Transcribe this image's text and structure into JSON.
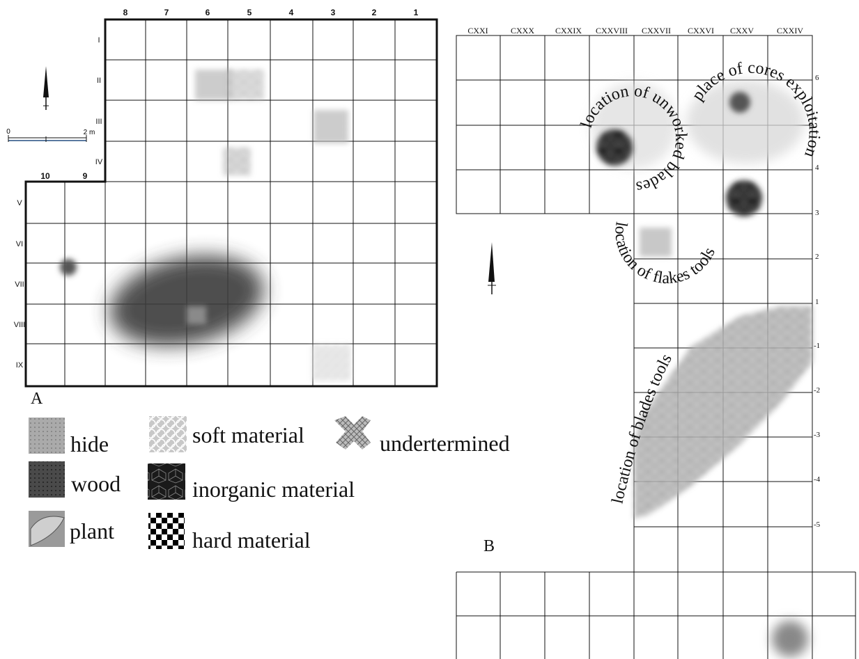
{
  "panel_a": {
    "label": "A",
    "scale_label_start": "0",
    "scale_label_end": "2 m",
    "column_labels_top": [
      "8",
      "7",
      "6",
      "5",
      "4",
      "3",
      "2",
      "1"
    ],
    "column_labels_lower": [
      "10",
      "9"
    ],
    "row_labels": [
      "I",
      "II",
      "III",
      "IV",
      "V",
      "VI",
      "VII",
      "VIII",
      "IX"
    ]
  },
  "panel_b": {
    "label": "B",
    "column_labels": [
      "CXXI",
      "CXXX",
      "CXXIX",
      "CXXVIII",
      "CXXVII",
      "CXXVI",
      "CXXV",
      "CXXIV"
    ],
    "row_labels_right": [
      "6",
      "4",
      "3",
      "2",
      "1",
      "-1",
      "-2",
      "-3",
      "-4",
      "-5"
    ],
    "annotations": {
      "unworked_blades": "location of unworked blades",
      "cores": "place of cores exploitation",
      "flakes_tools": "location of flakes tools",
      "blades_tools": "location of blades tools"
    }
  },
  "legend": {
    "items": [
      {
        "label": "hide",
        "pattern": "hide"
      },
      {
        "label": "wood",
        "pattern": "wood"
      },
      {
        "label": "plant",
        "pattern": "plant"
      },
      {
        "label": "soft material",
        "pattern": "soft"
      },
      {
        "label": "inorganic material",
        "pattern": "inorganic"
      },
      {
        "label": "hard material",
        "pattern": "hard"
      },
      {
        "label": "undertermined",
        "pattern": "undetermined"
      }
    ]
  },
  "colors": {
    "ink": "#111111",
    "soft_shadow": "#444444"
  }
}
